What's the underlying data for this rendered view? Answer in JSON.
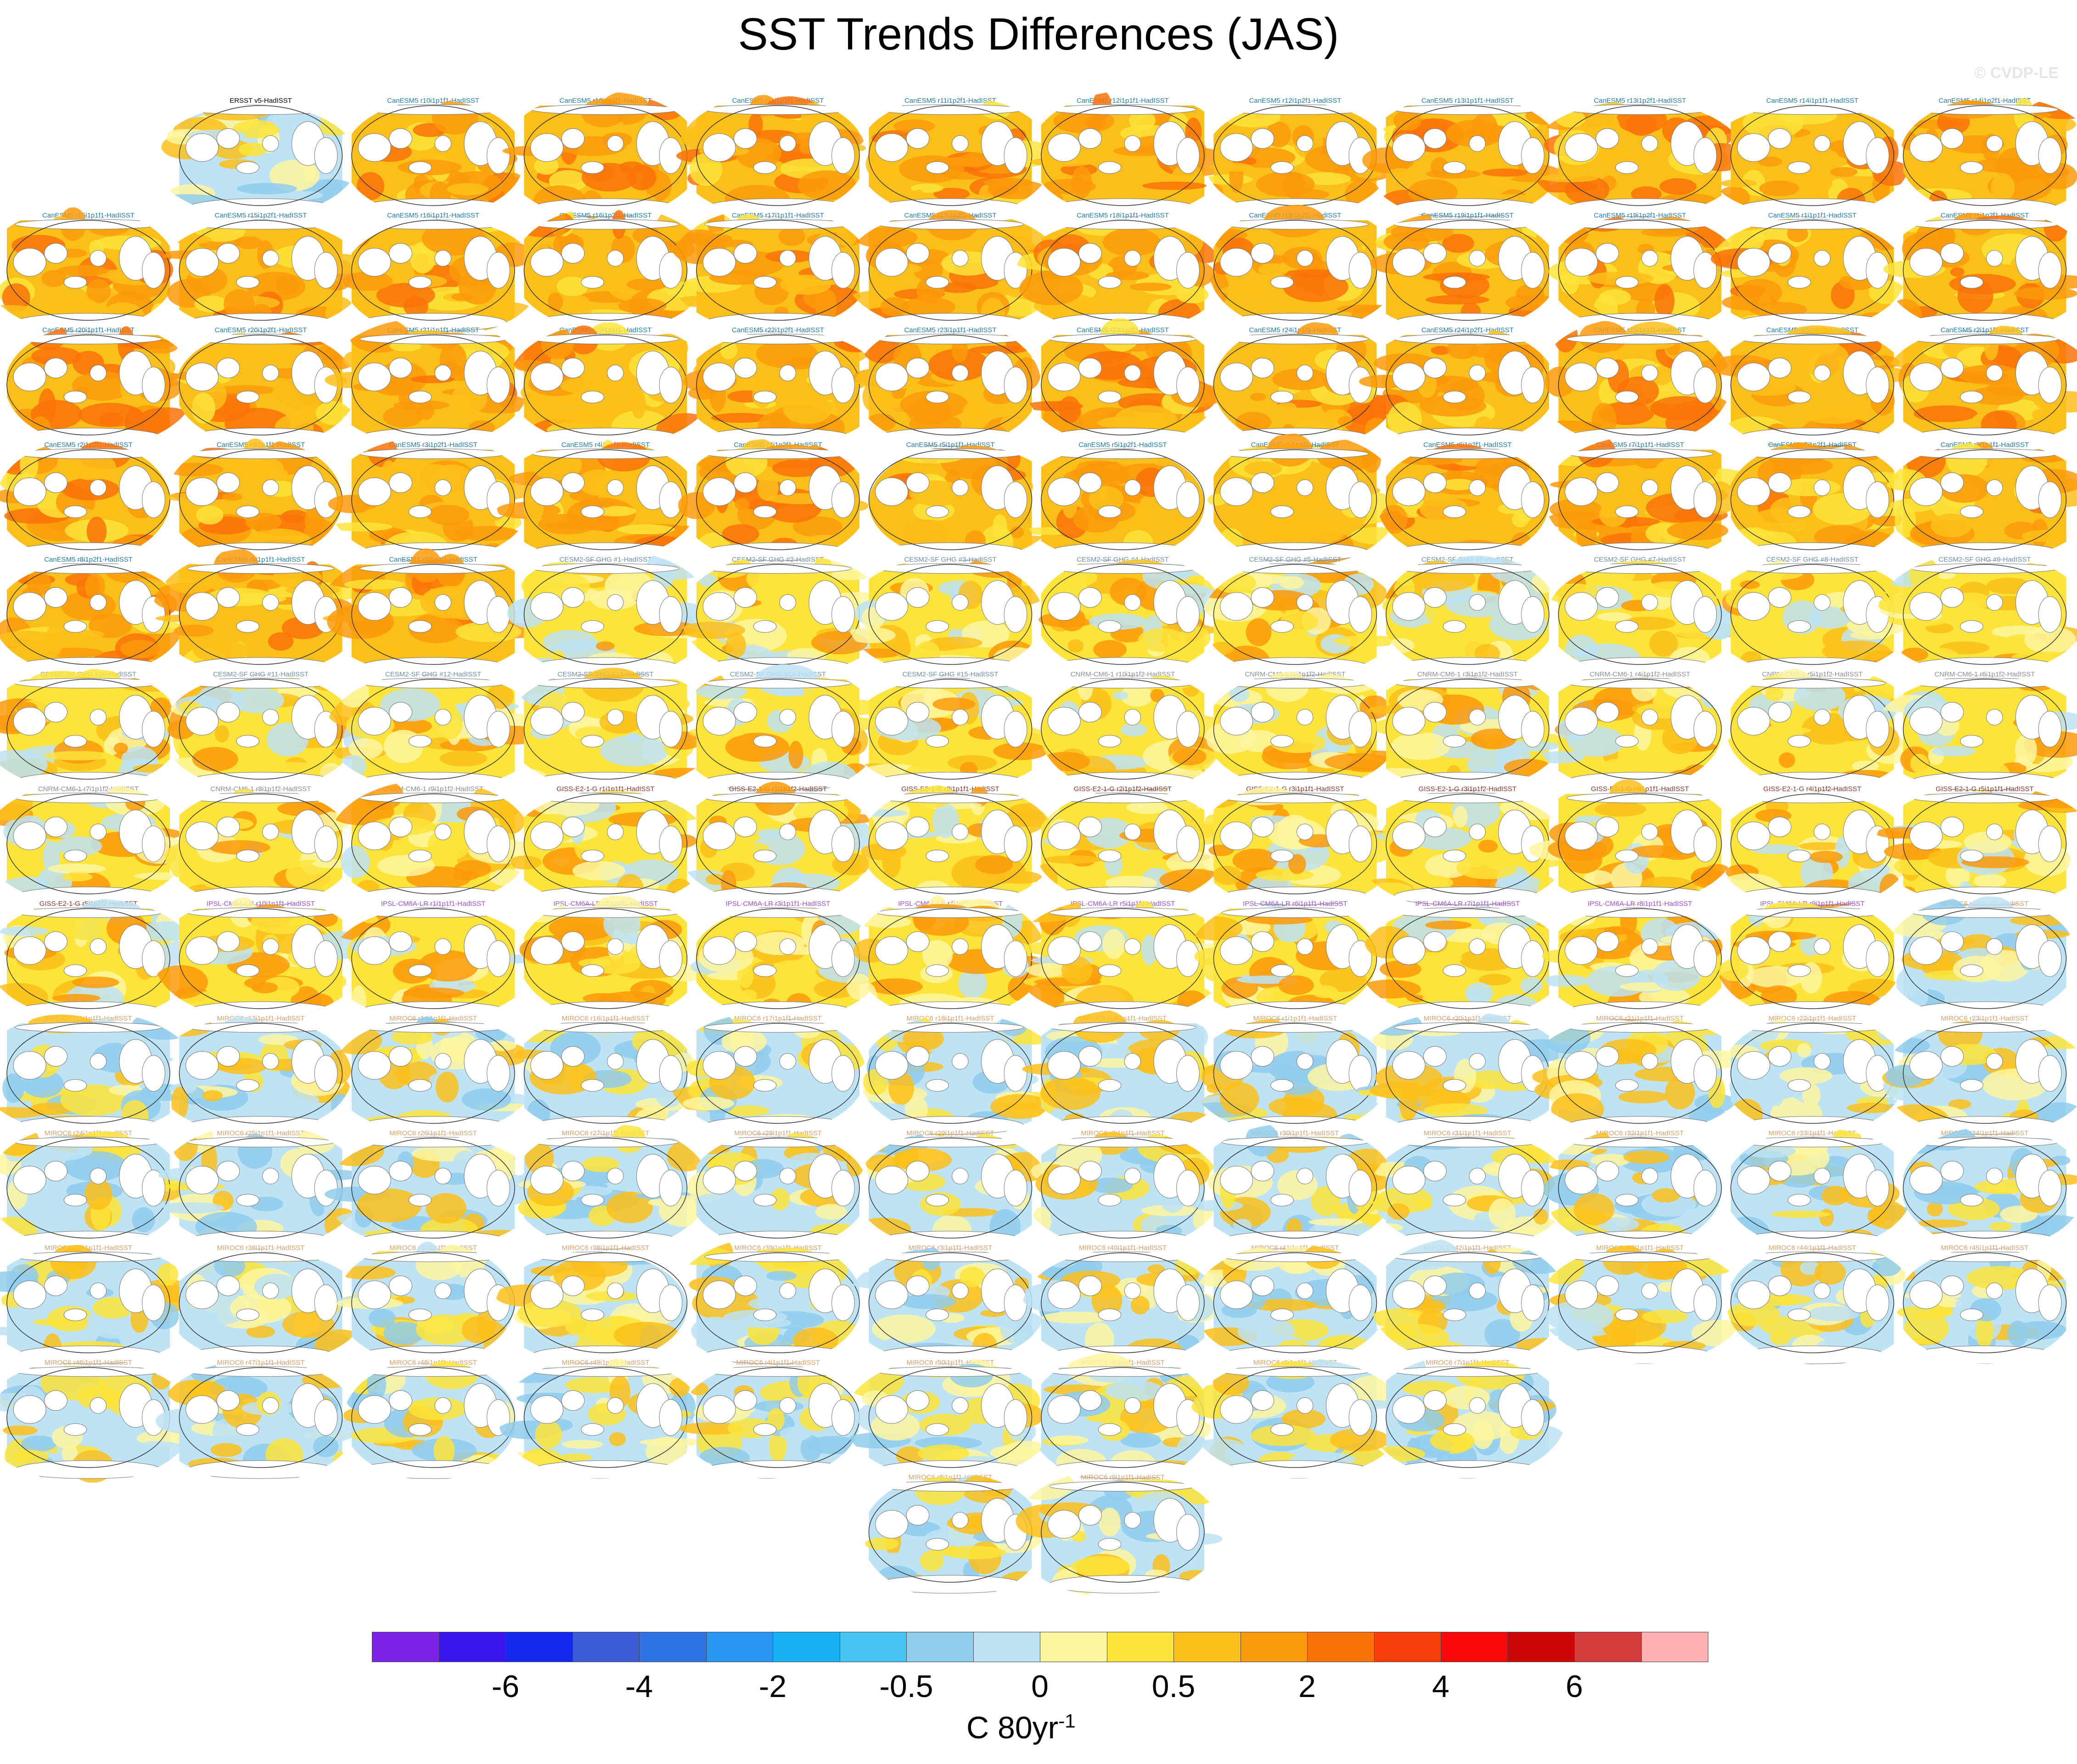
{
  "title": "SST Trends Differences (JAS)",
  "watermark": "© CVDP-LE",
  "chart_data": {
    "type": "map-panel-grid",
    "title": "SST Trends Differences (JAS)",
    "panels": [
      {
        "label": "ERSST v5-HadISST",
        "family": "obs"
      },
      {
        "label": "CanESM5 r10i1p1f1-HadISST",
        "family": "CanESM5"
      },
      {
        "label": "CanESM5 r10i1p2f1-HadISST",
        "family": "CanESM5"
      },
      {
        "label": "CanESM5 r11i1p1f1-HadISST",
        "family": "CanESM5"
      },
      {
        "label": "CanESM5 r11i1p2f1-HadISST",
        "family": "CanESM5"
      },
      {
        "label": "CanESM5 r12i1p1f1-HadISST",
        "family": "CanESM5"
      },
      {
        "label": "CanESM5 r12i1p2f1-HadISST",
        "family": "CanESM5"
      },
      {
        "label": "CanESM5 r13i1p1f1-HadISST",
        "family": "CanESM5"
      },
      {
        "label": "CanESM5 r13i1p2f1-HadISST",
        "family": "CanESM5"
      },
      {
        "label": "CanESM5 r14i1p1f1-HadISST",
        "family": "CanESM5"
      },
      {
        "label": "CanESM5 r14i1p2f1-HadISST",
        "family": "CanESM5"
      },
      {
        "label": "CanESM5 r15i1p1f1-HadISST",
        "family": "CanESM5"
      },
      {
        "label": "CanESM5 r15i1p2f1-HadISST",
        "family": "CanESM5"
      },
      {
        "label": "CanESM5 r16i1p1f1-HadISST",
        "family": "CanESM5"
      },
      {
        "label": "CanESM5 r16i1p2f1-HadISST",
        "family": "CanESM5"
      },
      {
        "label": "CanESM5 r17i1p1f1-HadISST",
        "family": "CanESM5"
      },
      {
        "label": "CanESM5 r17i1p2f1-HadISST",
        "family": "CanESM5"
      },
      {
        "label": "CanESM5 r18i1p1f1-HadISST",
        "family": "CanESM5"
      },
      {
        "label": "CanESM5 r18i1p2f1-HadISST",
        "family": "CanESM5"
      },
      {
        "label": "CanESM5 r19i1p1f1-HadISST",
        "family": "CanESM5"
      },
      {
        "label": "CanESM5 r19i1p2f1-HadISST",
        "family": "CanESM5"
      },
      {
        "label": "CanESM5 r1i1p1f1-HadISST",
        "family": "CanESM5"
      },
      {
        "label": "CanESM5 r1i1p2f1-HadISST",
        "family": "CanESM5"
      },
      {
        "label": "CanESM5 r20i1p1f1-HadISST",
        "family": "CanESM5"
      },
      {
        "label": "CanESM5 r20i1p2f1-HadISST",
        "family": "CanESM5"
      },
      {
        "label": "CanESM5 r21i1p1f1-HadISST",
        "family": "CanESM5"
      },
      {
        "label": "CanESM5 r22i1p1f1-HadISST",
        "family": "CanESM5"
      },
      {
        "label": "CanESM5 r22i1p2f1-HadISST",
        "family": "CanESM5"
      },
      {
        "label": "CanESM5 r23i1p1f1-HadISST",
        "family": "CanESM5"
      },
      {
        "label": "CanESM5 r23i1p2f1-HadISST",
        "family": "CanESM5"
      },
      {
        "label": "CanESM5 r24i1p1f1-HadISST",
        "family": "CanESM5"
      },
      {
        "label": "CanESM5 r24i1p2f1-HadISST",
        "family": "CanESM5"
      },
      {
        "label": "CanESM5 r25i1p1f1-HadISST",
        "family": "CanESM5"
      },
      {
        "label": "CanESM5 r25i1p2f1-HadISST",
        "family": "CanESM5"
      },
      {
        "label": "CanESM5 r2i1p1f1-HadISST",
        "family": "CanESM5"
      },
      {
        "label": "CanESM5 r2i1p2f1-HadISST",
        "family": "CanESM5"
      },
      {
        "label": "CanESM5 r3i1p1f1-HadISST",
        "family": "CanESM5"
      },
      {
        "label": "CanESM5 r3i1p2f1-HadISST",
        "family": "CanESM5"
      },
      {
        "label": "CanESM5 r4i1p1f1-HadISST",
        "family": "CanESM5"
      },
      {
        "label": "CanESM5 r4i1p2f1-HadISST",
        "family": "CanESM5"
      },
      {
        "label": "CanESM5 r5i1p1f1-HadISST",
        "family": "CanESM5"
      },
      {
        "label": "CanESM5 r5i1p2f1-HadISST",
        "family": "CanESM5"
      },
      {
        "label": "CanESM5 r6i1p1f1-HadISST",
        "family": "CanESM5"
      },
      {
        "label": "CanESM5 r6i1p2f1-HadISST",
        "family": "CanESM5"
      },
      {
        "label": "CanESM5 r7i1p1f1-HadISST",
        "family": "CanESM5"
      },
      {
        "label": "CanESM5 r7i1p2f1-HadISST",
        "family": "CanESM5"
      },
      {
        "label": "CanESM5 r8i1p1f1-HadISST",
        "family": "CanESM5"
      },
      {
        "label": "CanESM5 r8i1p2f1-HadISST",
        "family": "CanESM5"
      },
      {
        "label": "CanESM5 r9i1p1f1-HadISST",
        "family": "CanESM5"
      },
      {
        "label": "CanESM5 r9i1p2f1-HadISST",
        "family": "CanESM5"
      },
      {
        "label": "CESM2-SF GHG #1-HadISST",
        "family": "CESM2"
      },
      {
        "label": "CESM2-SF GHG #2-HadISST",
        "family": "CESM2"
      },
      {
        "label": "CESM2-SF GHG #3-HadISST",
        "family": "CESM2"
      },
      {
        "label": "CESM2-SF GHG #4-HadISST",
        "family": "CESM2"
      },
      {
        "label": "CESM2-SF GHG #5-HadISST",
        "family": "CESM2"
      },
      {
        "label": "CESM2-SF GHG #6-HadISST",
        "family": "CESM2"
      },
      {
        "label": "CESM2-SF GHG #7-HadISST",
        "family": "CESM2"
      },
      {
        "label": "CESM2-SF GHG #8-HadISST",
        "family": "CESM2"
      },
      {
        "label": "CESM2-SF GHG #9-HadISST",
        "family": "CESM2"
      },
      {
        "label": "CESM2-SF GHG #10-HadISST",
        "family": "CESM2"
      },
      {
        "label": "CESM2-SF GHG #11-HadISST",
        "family": "CESM2"
      },
      {
        "label": "CESM2-SF GHG #12-HadISST",
        "family": "CESM2"
      },
      {
        "label": "CESM2-SF GHG #13-HadISST",
        "family": "CESM2"
      },
      {
        "label": "CESM2-SF GHG #14-HadISST",
        "family": "CESM2"
      },
      {
        "label": "CESM2-SF GHG #15-HadISST",
        "family": "CESM2"
      },
      {
        "label": "CNRM-CM6-1 r10i1p1f2-HadISST",
        "family": "CNRM"
      },
      {
        "label": "CNRM-CM6-1 r1i1p1f2-HadISST",
        "family": "CNRM"
      },
      {
        "label": "CNRM-CM6-1 r3i1p1f2-HadISST",
        "family": "CNRM"
      },
      {
        "label": "CNRM-CM6-1 r4i1p1f2-HadISST",
        "family": "CNRM"
      },
      {
        "label": "CNRM-CM6-1 r5i1p1f2-HadISST",
        "family": "CNRM"
      },
      {
        "label": "CNRM-CM6-1 r6i1p1f2-HadISST",
        "family": "CNRM"
      },
      {
        "label": "CNRM-CM6-1 r7i1p1f2-HadISST",
        "family": "CNRM"
      },
      {
        "label": "CNRM-CM6-1 r8i1p1f2-HadISST",
        "family": "CNRM"
      },
      {
        "label": "CNRM-CM6-1 r9i1p1f2-HadISST",
        "family": "CNRM"
      },
      {
        "label": "GISS-E2-1-G r1i1p1f1-HadISST",
        "family": "GISS"
      },
      {
        "label": "GISS-E2-1-G r1i1p1f2-HadISST",
        "family": "GISS"
      },
      {
        "label": "GISS-E2-1-G r2i1p1f1-HadISST",
        "family": "GISS"
      },
      {
        "label": "GISS-E2-1-G r2i1p1f2-HadISST",
        "family": "GISS"
      },
      {
        "label": "GISS-E2-1-G r3i1p1f1-HadISST",
        "family": "GISS"
      },
      {
        "label": "GISS-E2-1-G r3i1p1f2-HadISST",
        "family": "GISS"
      },
      {
        "label": "GISS-E2-1-G r4i1p1f1-HadISST",
        "family": "GISS"
      },
      {
        "label": "GISS-E2-1-G r4i1p1f2-HadISST",
        "family": "GISS"
      },
      {
        "label": "GISS-E2-1-G r5i1p1f1-HadISST",
        "family": "GISS"
      },
      {
        "label": "GISS-E2-1-G r5i1p1f2-HadISST",
        "family": "GISS"
      },
      {
        "label": "IPSL-CM6A-LR r10i1p1f1-HadISST",
        "family": "IPSL"
      },
      {
        "label": "IPSL-CM6A-LR r1i1p1f1-HadISST",
        "family": "IPSL"
      },
      {
        "label": "IPSL-CM6A-LR r2i1p1f1-HadISST",
        "family": "IPSL"
      },
      {
        "label": "IPSL-CM6A-LR r3i1p1f1-HadISST",
        "family": "IPSL"
      },
      {
        "label": "IPSL-CM6A-LR r4i1p1f1-HadISST",
        "family": "IPSL"
      },
      {
        "label": "IPSL-CM6A-LR r5i1p1f1-HadISST",
        "family": "IPSL"
      },
      {
        "label": "IPSL-CM6A-LR r6i1p1f1-HadISST",
        "family": "IPSL"
      },
      {
        "label": "IPSL-CM6A-LR r7i1p1f1-HadISST",
        "family": "IPSL"
      },
      {
        "label": "IPSL-CM6A-LR r8i1p1f1-HadISST",
        "family": "IPSL"
      },
      {
        "label": "IPSL-CM6A-LR r9i1p1f1-HadISST",
        "family": "IPSL"
      },
      {
        "label": "MIROC6 r10i1p1f1-HadISST",
        "family": "MIROC6"
      },
      {
        "label": "MIROC6 r11i1p1f1-HadISST",
        "family": "MIROC6"
      },
      {
        "label": "MIROC6 r13i1p1f1-HadISST",
        "family": "MIROC6"
      },
      {
        "label": "MIROC6 r14i1p1f1-HadISST",
        "family": "MIROC6"
      },
      {
        "label": "MIROC6 r16i1p1f1-HadISST",
        "family": "MIROC6"
      },
      {
        "label": "MIROC6 r17i1p1f1-HadISST",
        "family": "MIROC6"
      },
      {
        "label": "MIROC6 r18i1p1f1-HadISST",
        "family": "MIROC6"
      },
      {
        "label": "MIROC6 r19i1p1f1-HadISST",
        "family": "MIROC6"
      },
      {
        "label": "MIROC6 r1i1p1f1-HadISST",
        "family": "MIROC6"
      },
      {
        "label": "MIROC6 r20i1p1f1-HadISST",
        "family": "MIROC6"
      },
      {
        "label": "MIROC6 r21i1p1f1-HadISST",
        "family": "MIROC6"
      },
      {
        "label": "MIROC6 r22i1p1f1-HadISST",
        "family": "MIROC6"
      },
      {
        "label": "MIROC6 r23i1p1f1-HadISST",
        "family": "MIROC6"
      },
      {
        "label": "MIROC6 r24i1p1f1-HadISST",
        "family": "MIROC6"
      },
      {
        "label": "MIROC6 r25i1p1f1-HadISST",
        "family": "MIROC6"
      },
      {
        "label": "MIROC6 r26i1p1f1-HadISST",
        "family": "MIROC6"
      },
      {
        "label": "MIROC6 r27i1p1f1-HadISST",
        "family": "MIROC6"
      },
      {
        "label": "MIROC6 r28i1p1f1-HadISST",
        "family": "MIROC6"
      },
      {
        "label": "MIROC6 r29i1p1f1-HadISST",
        "family": "MIROC6"
      },
      {
        "label": "MIROC6 r2i1p1f1-HadISST",
        "family": "MIROC6"
      },
      {
        "label": "MIROC6 r30i1p1f1-HadISST",
        "family": "MIROC6"
      },
      {
        "label": "MIROC6 r31i1p1f1-HadISST",
        "family": "MIROC6"
      },
      {
        "label": "MIROC6 r32i1p1f1-HadISST",
        "family": "MIROC6"
      },
      {
        "label": "MIROC6 r33i1p1f1-HadISST",
        "family": "MIROC6"
      },
      {
        "label": "MIROC6 r34i1p1f1-HadISST",
        "family": "MIROC6"
      },
      {
        "label": "MIROC6 r35i1p1f1-HadISST",
        "family": "MIROC6"
      },
      {
        "label": "MIROC6 r36i1p1f1-HadISST",
        "family": "MIROC6"
      },
      {
        "label": "MIROC6 r37i1p1f1-HadISST",
        "family": "MIROC6"
      },
      {
        "label": "MIROC6 r38i1p1f1-HadISST",
        "family": "MIROC6"
      },
      {
        "label": "MIROC6 r39i1p1f1-HadISST",
        "family": "MIROC6"
      },
      {
        "label": "MIROC6 r3i1p1f1-HadISST",
        "family": "MIROC6"
      },
      {
        "label": "MIROC6 r40i1p1f1-HadISST",
        "family": "MIROC6"
      },
      {
        "label": "MIROC6 r41i1p1f1-HadISST",
        "family": "MIROC6"
      },
      {
        "label": "MIROC6 r42i1p1f1-HadISST",
        "family": "MIROC6"
      },
      {
        "label": "MIROC6 r43i1p1f1-HadISST",
        "family": "MIROC6"
      },
      {
        "label": "MIROC6 r44i1p1f1-HadISST",
        "family": "MIROC6"
      },
      {
        "label": "MIROC6 r45i1p1f1-HadISST",
        "family": "MIROC6"
      },
      {
        "label": "MIROC6 r46i1p1f1-HadISST",
        "family": "MIROC6"
      },
      {
        "label": "MIROC6 r47i1p1f1-HadISST",
        "family": "MIROC6"
      },
      {
        "label": "MIROC6 r48i1p1f1-HadISST",
        "family": "MIROC6"
      },
      {
        "label": "MIROC6 r49i1p1f1-HadISST",
        "family": "MIROC6"
      },
      {
        "label": "MIROC6 r4i1p1f1-HadISST",
        "family": "MIROC6"
      },
      {
        "label": "MIROC6 r50i1p1f1-HadISST",
        "family": "MIROC6"
      },
      {
        "label": "MIROC6 r5i1p1f1-HadISST",
        "family": "MIROC6"
      },
      {
        "label": "MIROC6 r6i1p1f1-HadISST",
        "family": "MIROC6"
      },
      {
        "label": "MIROC6 r7i1p1f1-HadISST",
        "family": "MIROC6"
      },
      {
        "label": "MIROC6 r8i1p1f1-HadISST",
        "family": "MIROC6"
      },
      {
        "label": "MIROC6 r9i1p1f1-HadISST",
        "family": "MIROC6"
      }
    ],
    "family_label_colors": {
      "obs": "#000000",
      "CanESM5": "#1f7fa8",
      "CESM2": "#6f8fa8",
      "CNRM": "#8a8f99",
      "GISS": "#8b3a2a",
      "IPSL": "#a050d8",
      "MIROC6": "#d9a16a"
    },
    "colorbar": {
      "colors": [
        "#7a22e8",
        "#3a16ee",
        "#1428ee",
        "#3a5cd6",
        "#2f74e4",
        "#2996f2",
        "#16b0f5",
        "#46c4f2",
        "#90cdec",
        "#bde3f5",
        "#fdf6a0",
        "#fde43a",
        "#fbbf1a",
        "#fb9a0a",
        "#f97208",
        "#f93e0a",
        "#f80808",
        "#cc0606",
        "#d43c3c",
        "#fcb0b0"
      ],
      "tick_labels": [
        "-6",
        "-4",
        "-2",
        "-0.5",
        "0",
        "0.5",
        "2",
        "4",
        "6"
      ],
      "tick_after_box": [
        2,
        4,
        6,
        8,
        10,
        12,
        14,
        16,
        18
      ],
      "units_main": "C 80yr",
      "units_sup": "-1"
    }
  }
}
